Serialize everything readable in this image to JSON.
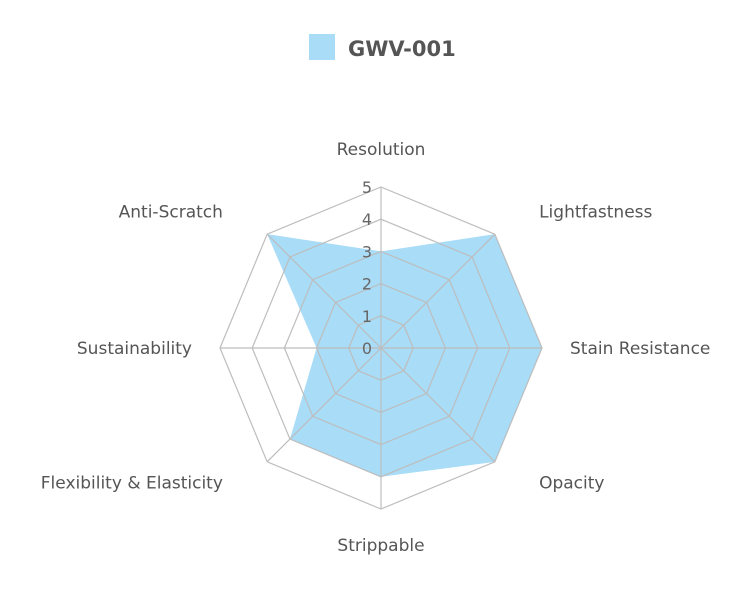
{
  "chart_data": {
    "type": "radar",
    "categories": [
      "Resolution",
      "Lightfastness",
      "Stain Resistance",
      "Opacity",
      "Strippable",
      "Flexibility & Elasticity",
      "Sustainability",
      "Anti-Scratch"
    ],
    "series": [
      {
        "name": "GWV-001",
        "values": [
          3,
          5,
          5,
          5,
          4,
          4,
          2,
          5
        ]
      }
    ],
    "rlim": [
      0,
      5
    ],
    "ticks": [
      "0",
      "1",
      "2",
      "3",
      "4",
      "5"
    ],
    "legend_position": "top",
    "grid": true
  },
  "colors": {
    "series_fill": "#a8dcf7",
    "grid": "#bdbdbd",
    "text": "#555555"
  }
}
